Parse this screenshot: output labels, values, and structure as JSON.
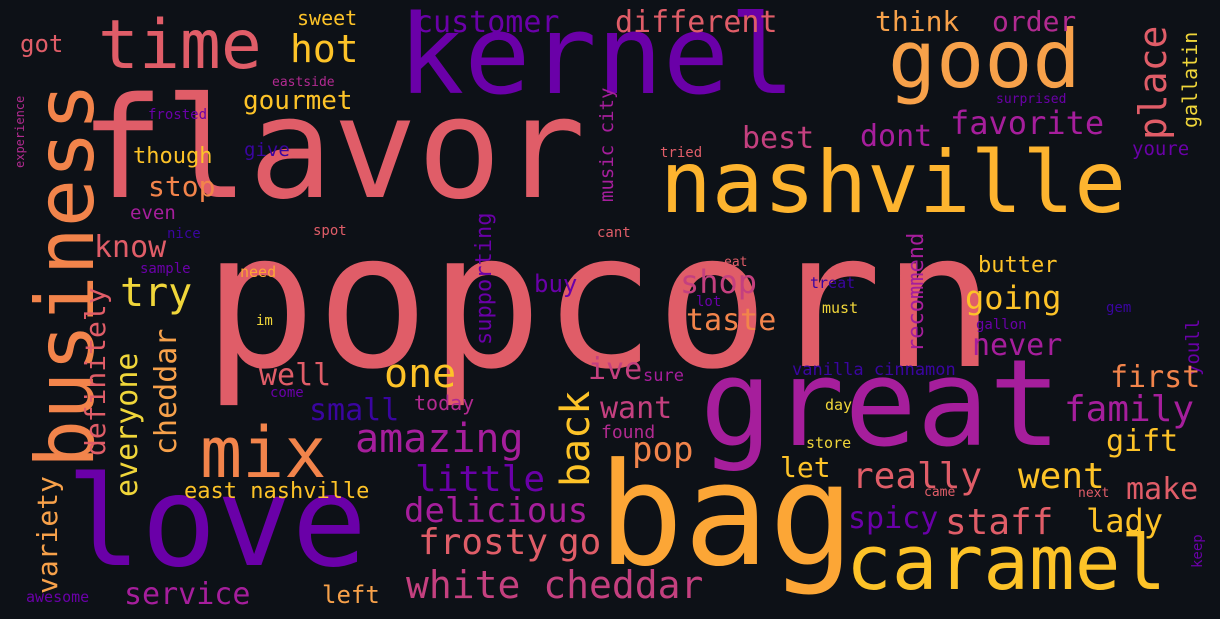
{
  "background": "#0d1117",
  "palette": [
    "#0d0887",
    "#6a00a8",
    "#b12a90",
    "#e16462",
    "#fca636",
    "#f0f921"
  ],
  "words": [
    {
      "text": "popcorn",
      "color": "#e05d68",
      "weight": 100
    },
    {
      "text": "flavor",
      "color": "#e05d68",
      "weight": 70
    },
    {
      "text": "kernel",
      "color": "#6a00a8",
      "weight": 55
    },
    {
      "text": "great",
      "color": "#a61e9c",
      "weight": 55
    },
    {
      "text": "bag",
      "color": "#fca636",
      "weight": 55
    },
    {
      "text": "love",
      "color": "#6a00a8",
      "weight": 53
    },
    {
      "text": "nashville",
      "color": "#fdb42f",
      "weight": 42
    },
    {
      "text": "business",
      "color": "#f2844b",
      "weight": 40
    },
    {
      "text": "time",
      "color": "#e05d68",
      "weight": 38
    },
    {
      "text": "good",
      "color": "#f7a14a",
      "weight": 38
    },
    {
      "text": "caramel",
      "color": "#fdc328",
      "weight": 36
    },
    {
      "text": "mix",
      "color": "#f2844b",
      "weight": 33
    },
    {
      "text": "white cheddar",
      "color": "#c4407f",
      "weight": 22
    },
    {
      "text": "hot",
      "color": "#fdc328",
      "weight": 20
    },
    {
      "text": "customer",
      "color": "#6a00a8",
      "weight": 17
    },
    {
      "text": "different",
      "color": "#e05d68",
      "weight": 17
    },
    {
      "text": "think",
      "color": "#f7a14a",
      "weight": 17
    },
    {
      "text": "order",
      "color": "#b12a90",
      "weight": 17
    },
    {
      "text": "place",
      "color": "#e05d68",
      "weight": 20
    },
    {
      "text": "gallatin",
      "color": "#f0d63a",
      "weight": 12
    },
    {
      "text": "favorite",
      "color": "#a61e9c",
      "weight": 18
    },
    {
      "text": "gourmet",
      "color": "#fdc328",
      "weight": 14
    },
    {
      "text": "got",
      "color": "#e05d68",
      "weight": 12
    },
    {
      "text": "sweet",
      "color": "#fdc328",
      "weight": 11
    },
    {
      "text": "eastside",
      "color": "#b12a90",
      "weight": 8
    },
    {
      "text": "experience",
      "color": "#b12a90",
      "weight": 7
    },
    {
      "text": "frosted",
      "color": "#6a00a8",
      "weight": 8
    },
    {
      "text": "surprised",
      "color": "#6a00a8",
      "weight": 7
    },
    {
      "text": "music city",
      "color": "#a61e9c",
      "weight": 10
    },
    {
      "text": "best",
      "color": "#c4407f",
      "weight": 17
    },
    {
      "text": "dont",
      "color": "#a61e9c",
      "weight": 17
    },
    {
      "text": "youre",
      "color": "#6a00a8",
      "weight": 11
    },
    {
      "text": "though",
      "color": "#fdc328",
      "weight": 12
    },
    {
      "text": "give",
      "color": "#3a05a0",
      "weight": 11
    },
    {
      "text": "tried",
      "color": "#e05d68",
      "weight": 8
    },
    {
      "text": "stop",
      "color": "#f2844b",
      "weight": 16
    },
    {
      "text": "even",
      "color": "#a61e9c",
      "weight": 11
    },
    {
      "text": "nice",
      "color": "#3a05a0",
      "weight": 8
    },
    {
      "text": "spot",
      "color": "#e05d68",
      "weight": 8
    },
    {
      "text": "cant",
      "color": "#e05d68",
      "weight": 8
    },
    {
      "text": "supporting",
      "color": "#6a00a8",
      "weight": 12
    },
    {
      "text": "recommend",
      "color": "#a61e9c",
      "weight": 12
    },
    {
      "text": "butter",
      "color": "#fdc328",
      "weight": 12
    },
    {
      "text": "know",
      "color": "#e05d68",
      "weight": 16
    },
    {
      "text": "sample",
      "color": "#6a00a8",
      "weight": 8
    },
    {
      "text": "need",
      "color": "#fca636",
      "weight": 8
    },
    {
      "text": "try",
      "color": "#f0d63a",
      "weight": 22
    },
    {
      "text": "buy",
      "color": "#6a00a8",
      "weight": 13
    },
    {
      "text": "shop",
      "color": "#c4407f",
      "weight": 17
    },
    {
      "text": "treat",
      "color": "#3a05a0",
      "weight": 8
    },
    {
      "text": "eat",
      "color": "#e05d68",
      "weight": 8
    },
    {
      "text": "lot",
      "color": "#6a00a8",
      "weight": 8
    },
    {
      "text": "must",
      "color": "#f0d63a",
      "weight": 8
    },
    {
      "text": "going",
      "color": "#fdc328",
      "weight": 18
    },
    {
      "text": "gem",
      "color": "#3a05a0",
      "weight": 8
    },
    {
      "text": "gallon",
      "color": "#6a00a8",
      "weight": 8
    },
    {
      "text": "im",
      "color": "#f0d63a",
      "weight": 8
    },
    {
      "text": "taste",
      "color": "#f2844b",
      "weight": 17
    },
    {
      "text": "youll",
      "color": "#6a00a8",
      "weight": 10
    },
    {
      "text": "definitely",
      "color": "#e05d68",
      "weight": 15
    },
    {
      "text": "cheddar",
      "color": "#f7a14a",
      "weight": 16
    },
    {
      "text": "everyone",
      "color": "#f0d63a",
      "weight": 16
    },
    {
      "text": "variety",
      "color": "#f7a14a",
      "weight": 15
    },
    {
      "text": "never",
      "color": "#a61e9c",
      "weight": 16
    },
    {
      "text": "one",
      "color": "#fdc328",
      "weight": 22
    },
    {
      "text": "well",
      "color": "#e05d68",
      "weight": 16
    },
    {
      "text": "ive",
      "color": "#c4407f",
      "weight": 16
    },
    {
      "text": "sure",
      "color": "#a61e9c",
      "weight": 9
    },
    {
      "text": "vanilla cinnamon",
      "color": "#3a05a0",
      "weight": 9
    },
    {
      "text": "first",
      "color": "#f2844b",
      "weight": 16
    },
    {
      "text": "come",
      "color": "#6a00a8",
      "weight": 7
    },
    {
      "text": "small",
      "color": "#3a05a0",
      "weight": 17
    },
    {
      "text": "today",
      "color": "#b12a90",
      "weight": 11
    },
    {
      "text": "want",
      "color": "#c4407f",
      "weight": 17
    },
    {
      "text": "day",
      "color": "#f0d63a",
      "weight": 8
    },
    {
      "text": "family",
      "color": "#a61e9c",
      "weight": 20
    },
    {
      "text": "amazing",
      "color": "#a61e9c",
      "weight": 22
    },
    {
      "text": "back",
      "color": "#fdc328",
      "weight": 22
    },
    {
      "text": "found",
      "color": "#b12a90",
      "weight": 10
    },
    {
      "text": "pop",
      "color": "#f2844b",
      "weight": 20
    },
    {
      "text": "store",
      "color": "#f0d63a",
      "weight": 8
    },
    {
      "text": "gift",
      "color": "#fdc328",
      "weight": 17
    },
    {
      "text": "let",
      "color": "#fdc328",
      "weight": 16
    },
    {
      "text": "really",
      "color": "#e05d68",
      "weight": 20
    },
    {
      "text": "went",
      "color": "#fdc328",
      "weight": 20
    },
    {
      "text": "little",
      "color": "#6a00a8",
      "weight": 20
    },
    {
      "text": "east nashville",
      "color": "#fdc328",
      "weight": 13
    },
    {
      "text": "came",
      "color": "#e05d68",
      "weight": 7
    },
    {
      "text": "next",
      "color": "#e05d68",
      "weight": 7
    },
    {
      "text": "make",
      "color": "#e05d68",
      "weight": 17
    },
    {
      "text": "delicious",
      "color": "#a61e9c",
      "weight": 20
    },
    {
      "text": "spicy",
      "color": "#6a00a8",
      "weight": 16
    },
    {
      "text": "staff",
      "color": "#e05d68",
      "weight": 20
    },
    {
      "text": "lady",
      "color": "#fdc328",
      "weight": 17
    },
    {
      "text": "keep",
      "color": "#6a00a8",
      "weight": 7
    },
    {
      "text": "frosty",
      "color": "#e05d68",
      "weight": 20
    },
    {
      "text": "go",
      "color": "#e05d68",
      "weight": 20
    },
    {
      "text": "service",
      "color": "#a61e9c",
      "weight": 16
    },
    {
      "text": "left",
      "color": "#f7a14a",
      "weight": 12
    },
    {
      "text": "awesome",
      "color": "#6a00a8",
      "weight": 8
    }
  ]
}
